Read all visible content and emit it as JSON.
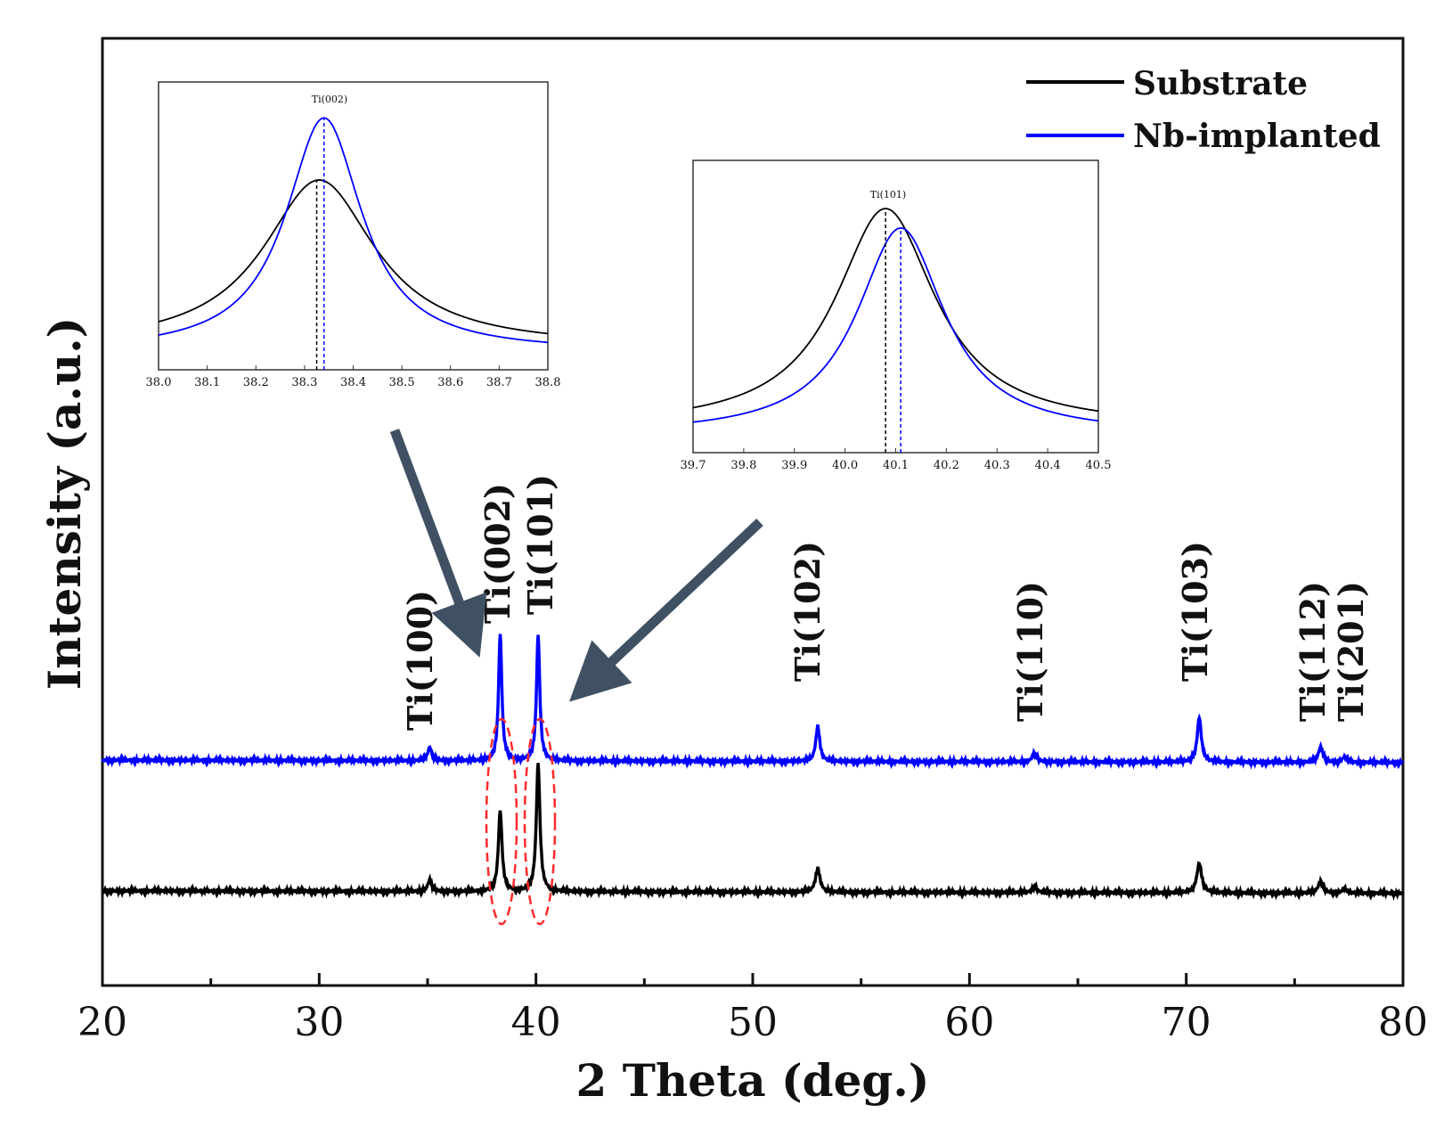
{
  "chart_data": [
    {
      "type": "line",
      "role": "main",
      "xlabel": "2 Theta (deg.)",
      "ylabel": "Intensity (a.u.)",
      "xlim": [
        20,
        80
      ],
      "ylim": [
        0,
        1
      ],
      "xticks": [
        20,
        30,
        40,
        50,
        60,
        70,
        80
      ],
      "xticklabels": [
        "20",
        "30",
        "40",
        "50",
        "60",
        "70",
        "80"
      ],
      "minor_xticks": [
        25,
        35,
        45,
        55,
        65,
        75
      ],
      "legend": {
        "position": "top-right",
        "entries": [
          "Substrate",
          "Nb-implanted"
        ]
      },
      "series": [
        {
          "name": "Substrate",
          "color": "#000000",
          "baseline": 0.1,
          "peaks": [
            {
              "x": 35.1,
              "height": 0.012,
              "width": 0.22
            },
            {
              "x": 38.35,
              "height": 0.085,
              "width": 0.2
            },
            {
              "x": 40.1,
              "height": 0.135,
              "width": 0.2
            },
            {
              "x": 53.0,
              "height": 0.025,
              "width": 0.25
            },
            {
              "x": 63.0,
              "height": 0.006,
              "width": 0.25
            },
            {
              "x": 70.6,
              "height": 0.031,
              "width": 0.27
            },
            {
              "x": 76.2,
              "height": 0.012,
              "width": 0.27
            },
            {
              "x": 77.3,
              "height": 0.005,
              "width": 0.22
            }
          ]
        },
        {
          "name": "Nb-implanted",
          "color": "#0000ff",
          "baseline": 0.238,
          "peaks": [
            {
              "x": 35.1,
              "height": 0.014,
              "width": 0.22
            },
            {
              "x": 38.35,
              "height": 0.134,
              "width": 0.18
            },
            {
              "x": 40.1,
              "height": 0.133,
              "width": 0.18
            },
            {
              "x": 53.0,
              "height": 0.037,
              "width": 0.22
            },
            {
              "x": 63.0,
              "height": 0.009,
              "width": 0.25
            },
            {
              "x": 70.6,
              "height": 0.047,
              "width": 0.23
            },
            {
              "x": 76.2,
              "height": 0.016,
              "width": 0.25
            },
            {
              "x": 77.3,
              "height": 0.006,
              "width": 0.22
            }
          ]
        }
      ],
      "peak_labels": [
        {
          "text": "Ti(100)",
          "x": 35.1
        },
        {
          "text": "Ti(002)",
          "x": 38.35
        },
        {
          "text": "Ti(101)",
          "x": 40.1
        },
        {
          "text": "Ti(102)",
          "x": 53.0
        },
        {
          "text": "Ti(110)",
          "x": 63.0
        },
        {
          "text": "Ti(103)",
          "x": 70.6
        },
        {
          "text": "Ti(112)",
          "x": 76.2
        },
        {
          "text": "Ti(201)",
          "x": 77.3
        }
      ],
      "annotations": [
        "red dashed ellipses around Ti(002) and Ti(101) peaks",
        "arrows pointing from insets to the ellipses"
      ]
    },
    {
      "type": "line",
      "role": "inset-left",
      "peak_label": "Ti(002)",
      "xlim": [
        38.0,
        38.8
      ],
      "xticklabels": [
        "38.0",
        "38.1",
        "38.2",
        "38.3",
        "38.4",
        "38.5",
        "38.6",
        "38.7",
        "38.8"
      ],
      "series": [
        {
          "name": "Substrate",
          "color": "#000000",
          "center": 38.33,
          "height": 0.7,
          "gamma": 0.14,
          "base": 0.02
        },
        {
          "name": "Nb-implanted",
          "color": "#0000ff",
          "center": 38.34,
          "height": 0.98,
          "gamma": 0.095,
          "base": 0.0
        }
      ],
      "dashed_lines": [
        38.325,
        38.34
      ]
    },
    {
      "type": "line",
      "role": "inset-right",
      "peak_label": "Ti(101)",
      "xlim": [
        39.7,
        40.5
      ],
      "xticklabels": [
        "39.7",
        "39.8",
        "39.9",
        "40.0",
        "40.1",
        "40.2",
        "40.3",
        "40.4",
        "40.5"
      ],
      "series": [
        {
          "name": "Substrate",
          "color": "#000000",
          "center": 40.08,
          "height": 0.9,
          "gamma": 0.12,
          "base": 0.03
        },
        {
          "name": "Nb-implanted",
          "color": "#0000ff",
          "center": 40.11,
          "height": 0.85,
          "gamma": 0.105,
          "base": 0.0
        }
      ],
      "dashed_lines": [
        40.08,
        40.11
      ]
    }
  ]
}
